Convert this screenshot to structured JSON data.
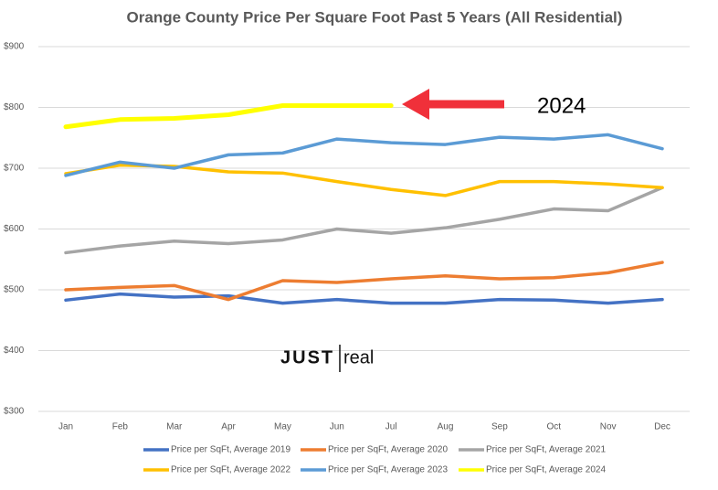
{
  "chart_data": {
    "type": "line",
    "title": "Orange County Price Per Square Foot Past 5 Years (All Residential)",
    "categories": [
      "Jan",
      "Feb",
      "Mar",
      "Apr",
      "May",
      "Jun",
      "Jul",
      "Aug",
      "Sep",
      "Oct",
      "Nov",
      "Dec"
    ],
    "series": [
      {
        "name": "Price per SqFt, Average 2019",
        "color": "#4472c4",
        "values": [
          483,
          493,
          488,
          490,
          478,
          484,
          478,
          478,
          484,
          483,
          478,
          484
        ]
      },
      {
        "name": "Price per SqFt, Average 2020",
        "color": "#ed7d31",
        "values": [
          500,
          504,
          507,
          484,
          515,
          512,
          518,
          523,
          518,
          520,
          528,
          545
        ]
      },
      {
        "name": "Price per SqFt, Average 2021",
        "color": "#a5a5a5",
        "values": [
          561,
          572,
          580,
          576,
          582,
          600,
          593,
          602,
          616,
          633,
          630,
          668
        ]
      },
      {
        "name": "Price per SqFt, Average 2022",
        "color": "#ffc000",
        "values": [
          691,
          705,
          703,
          694,
          692,
          678,
          665,
          655,
          678,
          678,
          674,
          668
        ]
      },
      {
        "name": "Price per SqFt, Average 2023",
        "color": "#5b9bd5",
        "values": [
          688,
          710,
          700,
          722,
          725,
          748,
          742,
          739,
          751,
          748,
          755,
          732
        ]
      },
      {
        "name": "Price per SqFt, Average 2024",
        "color": "#ffff00",
        "values": [
          768,
          780,
          782,
          788,
          803,
          803,
          803,
          null,
          null,
          null,
          null,
          null
        ]
      }
    ],
    "ylim": [
      300,
      900
    ],
    "yticks": [
      {
        "value": 300,
        "label": "$300"
      },
      {
        "value": 400,
        "label": "$400"
      },
      {
        "value": 500,
        "label": "$500"
      },
      {
        "value": 600,
        "label": "$600"
      },
      {
        "value": 700,
        "label": "$700"
      },
      {
        "value": 800,
        "label": "$800"
      },
      {
        "value": 900,
        "label": "$900"
      }
    ],
    "grid": true,
    "annotations": [
      "2024"
    ],
    "logo": [
      "JUST",
      "real"
    ]
  }
}
